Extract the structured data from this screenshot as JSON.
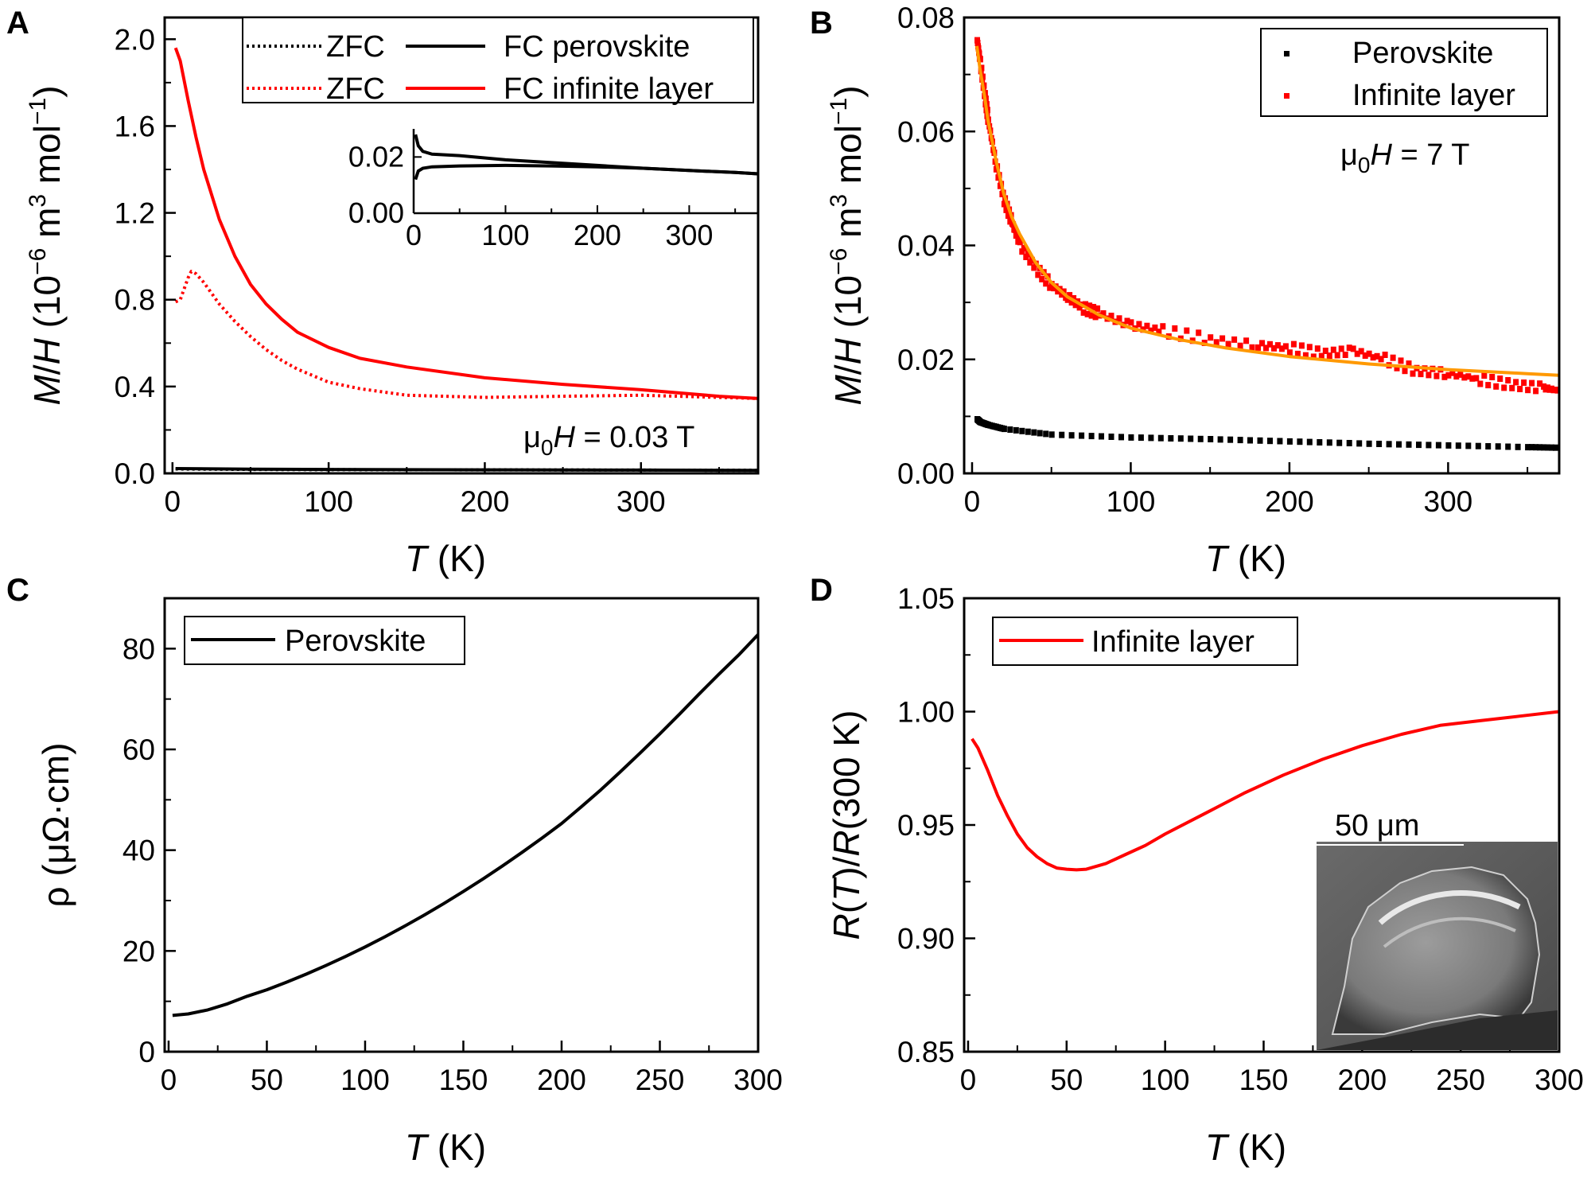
{
  "chart_data": [
    {
      "panel": "A",
      "type": "line",
      "xlabel": "T (K)",
      "ylabel": "M/H (10⁻⁶ m³ mol⁻¹)",
      "xlim": [
        -5,
        375
      ],
      "ylim": [
        0,
        2.1
      ],
      "xticks": [
        0,
        100,
        200,
        300
      ],
      "yticks": [
        0.0,
        0.4,
        0.8,
        1.2,
        1.6,
        2.0
      ],
      "ytick_labels": [
        "0.0",
        "0.4",
        "0.8",
        "1.2",
        "1.6",
        "2.0"
      ],
      "annotation": "μ0H = 0.03 T",
      "legend": [
        {
          "label": "ZFC",
          "color": "#000000",
          "style": "dotted"
        },
        {
          "label": "FC perovskite",
          "color": "#000000",
          "style": "solid"
        },
        {
          "label": "ZFC",
          "color": "#ff0000",
          "style": "dotted"
        },
        {
          "label": "FC infinite layer",
          "color": "#ff0000",
          "style": "solid"
        }
      ],
      "series": [
        {
          "name": "FC infinite layer",
          "color": "#ff0000",
          "style": "solid",
          "x": [
            2,
            5,
            10,
            15,
            20,
            30,
            40,
            50,
            60,
            70,
            80,
            100,
            120,
            150,
            200,
            250,
            300,
            350,
            375
          ],
          "y": [
            1.96,
            1.9,
            1.72,
            1.55,
            1.4,
            1.17,
            1.0,
            0.87,
            0.78,
            0.71,
            0.65,
            0.58,
            0.53,
            0.49,
            0.44,
            0.41,
            0.385,
            0.355,
            0.345
          ]
        },
        {
          "name": "ZFC",
          "color": "#ff0000",
          "style": "dotted",
          "x": [
            2,
            5,
            8,
            10,
            12,
            15,
            20,
            30,
            40,
            50,
            60,
            70,
            80,
            100,
            120,
            150,
            200,
            250,
            300,
            350,
            375
          ],
          "y": [
            0.79,
            0.8,
            0.86,
            0.9,
            0.93,
            0.92,
            0.88,
            0.78,
            0.7,
            0.63,
            0.57,
            0.52,
            0.48,
            0.42,
            0.39,
            0.36,
            0.35,
            0.355,
            0.36,
            0.35,
            0.345
          ]
        },
        {
          "name": "FC perovskite",
          "color": "#000000",
          "style": "solid",
          "x": [
            2,
            50,
            100,
            200,
            300,
            375
          ],
          "y": [
            0.022,
            0.019,
            0.018,
            0.016,
            0.015,
            0.014
          ]
        },
        {
          "name": "ZFC perovskite",
          "color": "#000000",
          "style": "dotted",
          "x": [
            2,
            50,
            100,
            200,
            300,
            375
          ],
          "y": [
            0.02,
            0.018,
            0.017,
            0.016,
            0.015,
            0.014
          ]
        }
      ],
      "inset": {
        "xlim": [
          0,
          375
        ],
        "ylim": [
          0,
          0.03
        ],
        "xticks": [
          0,
          100,
          200,
          300
        ],
        "yticks": [
          0.0,
          0.02
        ],
        "ytick_labels": [
          "0.00",
          "0.02"
        ],
        "series": [
          {
            "name": "FC perovskite",
            "color": "#000000",
            "x": [
              2,
              5,
              10,
              20,
              50,
              100,
              150,
              200,
              250,
              300,
              350,
              375
            ],
            "y": [
              0.028,
              0.024,
              0.022,
              0.021,
              0.0205,
              0.019,
              0.018,
              0.017,
              0.016,
              0.0152,
              0.0145,
              0.014
            ]
          },
          {
            "name": "ZFC perovskite",
            "color": "#000000",
            "x": [
              2,
              5,
              10,
              20,
              50,
              100,
              150,
              200,
              250,
              300,
              350,
              375
            ],
            "y": [
              0.012,
              0.015,
              0.016,
              0.0165,
              0.0168,
              0.017,
              0.0168,
              0.0165,
              0.016,
              0.0152,
              0.0145,
              0.014
            ]
          }
        ]
      }
    },
    {
      "panel": "B",
      "type": "scatter",
      "xlabel": "T (K)",
      "ylabel": "M/H (10⁻⁶ m³ mol⁻¹)",
      "xlim": [
        -5,
        370
      ],
      "ylim": [
        0,
        0.08
      ],
      "xticks": [
        0,
        100,
        200,
        300
      ],
      "yticks": [
        0.0,
        0.02,
        0.04,
        0.06,
        0.08
      ],
      "ytick_labels": [
        "0.00",
        "0.02",
        "0.04",
        "0.06",
        "0.08"
      ],
      "annotation": "μ0H = 7 T",
      "legend": [
        {
          "label": "Perovskite",
          "color": "#000000"
        },
        {
          "label": "Infinite layer",
          "color": "#ff0000"
        }
      ],
      "series": [
        {
          "name": "Infinite layer",
          "color": "#ff0000",
          "x": [
            3,
            5,
            8,
            10,
            15,
            20,
            25,
            30,
            40,
            50,
            60,
            70,
            80,
            100,
            120,
            150,
            180,
            200,
            220,
            240,
            260,
            280,
            300,
            320,
            340,
            360,
            370
          ],
          "y": [
            0.076,
            0.072,
            0.066,
            0.062,
            0.054,
            0.048,
            0.044,
            0.04,
            0.036,
            0.033,
            0.031,
            0.029,
            0.028,
            0.026,
            0.025,
            0.0235,
            0.0225,
            0.022,
            0.021,
            0.0215,
            0.02,
            0.018,
            0.0175,
            0.0165,
            0.0155,
            0.015,
            0.0145
          ]
        },
        {
          "name": "Perovskite",
          "color": "#000000",
          "x": [
            3,
            5,
            10,
            20,
            50,
            100,
            150,
            200,
            250,
            300,
            350,
            370
          ],
          "y": [
            0.0095,
            0.009,
            0.0085,
            0.0078,
            0.0068,
            0.0063,
            0.006,
            0.0056,
            0.0052,
            0.0049,
            0.0046,
            0.0045
          ]
        },
        {
          "name": "Fit",
          "color": "#ff9900",
          "x": [
            3,
            5,
            8,
            10,
            15,
            20,
            25,
            30,
            40,
            50,
            60,
            80,
            100,
            130,
            160,
            200,
            250,
            300,
            350,
            370
          ],
          "y": [
            0.075,
            0.071,
            0.066,
            0.062,
            0.055,
            0.049,
            0.045,
            0.042,
            0.037,
            0.0335,
            0.031,
            0.0278,
            0.0255,
            0.0235,
            0.022,
            0.0205,
            0.0192,
            0.0182,
            0.0175,
            0.0172
          ]
        }
      ]
    },
    {
      "panel": "C",
      "type": "line",
      "xlabel": "T (K)",
      "ylabel": "ρ (μΩ·cm)",
      "xlim": [
        -2,
        300
      ],
      "ylim": [
        0,
        90
      ],
      "xticks": [
        0,
        50,
        100,
        150,
        200,
        250,
        300
      ],
      "yticks": [
        0,
        20,
        40,
        60,
        80
      ],
      "ytick_labels": [
        "0",
        "20",
        "40",
        "60",
        "80"
      ],
      "legend": [
        {
          "label": "Perovskite",
          "color": "#000000"
        }
      ],
      "series": [
        {
          "name": "Perovskite",
          "color": "#000000",
          "x": [
            2,
            10,
            20,
            30,
            40,
            50,
            60,
            70,
            80,
            90,
            100,
            110,
            120,
            130,
            140,
            150,
            160,
            170,
            180,
            190,
            200,
            210,
            220,
            230,
            240,
            250,
            260,
            270,
            280,
            290,
            300
          ],
          "y": [
            7.2,
            7.5,
            8.3,
            9.5,
            11.0,
            12.3,
            13.8,
            15.4,
            17.1,
            18.9,
            20.8,
            22.8,
            24.9,
            27.1,
            29.4,
            31.8,
            34.3,
            36.9,
            39.6,
            42.4,
            45.3,
            48.6,
            52.0,
            55.6,
            59.3,
            63.1,
            67.0,
            71.0,
            74.9,
            78.7,
            82.8
          ]
        }
      ]
    },
    {
      "panel": "D",
      "type": "line",
      "xlabel": "T (K)",
      "ylabel": "R(T)/R(300 K)",
      "xlim": [
        -2,
        300
      ],
      "ylim": [
        0.85,
        1.05
      ],
      "xticks": [
        0,
        50,
        100,
        150,
        200,
        250,
        300
      ],
      "yticks": [
        0.85,
        0.9,
        0.95,
        1.0,
        1.05
      ],
      "ytick_labels": [
        "0.85",
        "0.90",
        "0.95",
        "1.00",
        "1.05"
      ],
      "legend": [
        {
          "label": "Infinite layer",
          "color": "#ff0000"
        }
      ],
      "inset_label": "50 μm",
      "series": [
        {
          "name": "Infinite layer",
          "color": "#ff0000",
          "x": [
            2,
            5,
            10,
            15,
            20,
            25,
            30,
            35,
            40,
            45,
            50,
            55,
            60,
            70,
            80,
            90,
            100,
            120,
            140,
            160,
            180,
            200,
            220,
            240,
            260,
            280,
            300
          ],
          "y": [
            0.988,
            0.984,
            0.974,
            0.963,
            0.954,
            0.946,
            0.94,
            0.936,
            0.933,
            0.931,
            0.9305,
            0.9302,
            0.9305,
            0.933,
            0.937,
            0.941,
            0.946,
            0.955,
            0.964,
            0.972,
            0.979,
            0.985,
            0.99,
            0.994,
            0.996,
            0.998,
            1.0
          ]
        }
      ]
    }
  ],
  "labels": {
    "panel_a": "A",
    "panel_b": "B",
    "panel_c": "C",
    "panel_d": "D",
    "legend_a_zfc_black": "ZFC",
    "legend_a_fc_perovskite": "FC perovskite",
    "legend_a_zfc_red": "ZFC",
    "legend_a_fc_infinite": "FC infinite layer",
    "legend_b_perovskite": "Perovskite",
    "legend_b_infinite": "Infinite layer",
    "legend_c_perovskite": "Perovskite",
    "legend_d_infinite": "Infinite layer",
    "scale_bar": "50 μm"
  }
}
